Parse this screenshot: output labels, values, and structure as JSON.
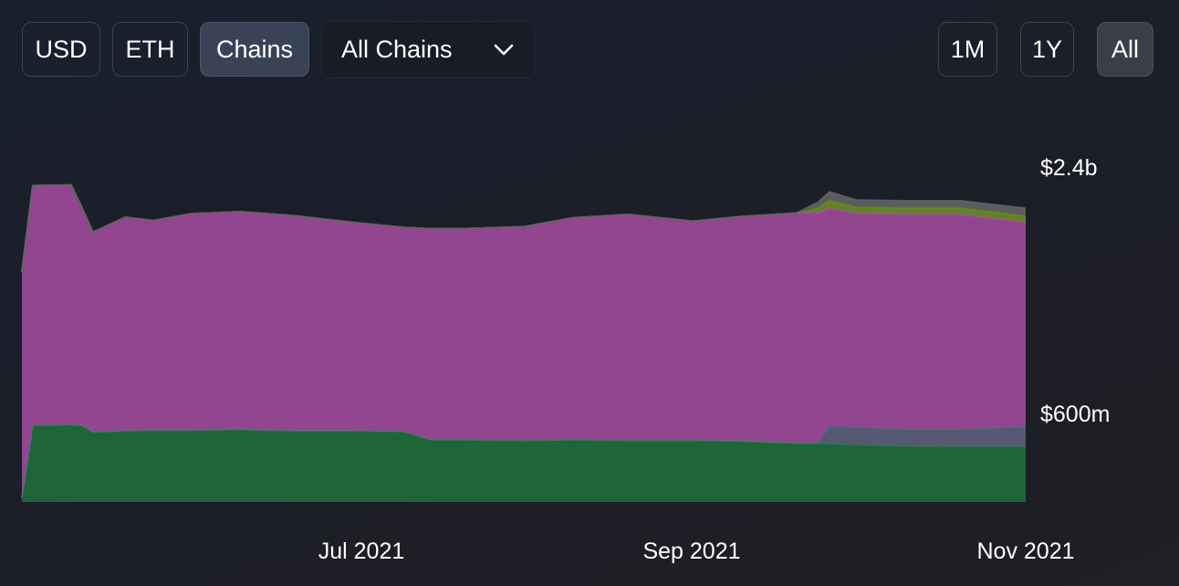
{
  "controls": {
    "currency_buttons": [
      "USD",
      "ETH",
      "Chains"
    ],
    "active_currency": "Chains",
    "chain_select_value": "All Chains",
    "range_buttons": [
      "1M",
      "1Y",
      "All"
    ],
    "active_range": "All"
  },
  "chart_data": {
    "type": "area",
    "stacked": true,
    "x_start": "2021-05-01",
    "x_end": "2021-11-01",
    "x_tick_labels": [
      "Jul 2021",
      "Sep 2021",
      "Nov 2021"
    ],
    "x_ticks": [
      "2021-07-01",
      "2021-09-01",
      "2021-11-01"
    ],
    "y_tick_labels": [
      "$2.4b",
      "$600m"
    ],
    "y_ticks": [
      2400000000,
      600000000
    ],
    "y_unit": "USD",
    "dates": [
      "2021-05-01",
      "2021-05-03",
      "2021-05-10",
      "2021-05-12",
      "2021-05-14",
      "2021-05-20",
      "2021-05-25",
      "2021-06-01",
      "2021-06-10",
      "2021-06-20",
      "2021-07-01",
      "2021-07-10",
      "2021-07-15",
      "2021-07-20",
      "2021-08-01",
      "2021-08-10",
      "2021-08-20",
      "2021-09-01",
      "2021-09-10",
      "2021-09-20",
      "2021-09-24",
      "2021-09-26",
      "2021-10-01",
      "2021-10-10",
      "2021-10-20",
      "2021-11-01"
    ],
    "series": [
      {
        "color": "#1e6b3a",
        "values": [
          30000000,
          560000000,
          565000000,
          560000000,
          510000000,
          520000000,
          525000000,
          525000000,
          530000000,
          520000000,
          520000000,
          515000000,
          455000000,
          455000000,
          450000000,
          455000000,
          450000000,
          450000000,
          445000000,
          430000000,
          430000000,
          420000000,
          415000000,
          405000000,
          400000000,
          400000000
        ]
      },
      {
        "color": "#5b5e78",
        "values": [
          0,
          0,
          0,
          0,
          0,
          0,
          0,
          0,
          0,
          0,
          0,
          0,
          0,
          0,
          0,
          0,
          0,
          0,
          0,
          0,
          0,
          135000000,
          130000000,
          125000000,
          130000000,
          150000000
        ]
      },
      {
        "color": "#9b4a98",
        "values": [
          1650000000,
          1750000000,
          1750000000,
          1590000000,
          1460000000,
          1560000000,
          1530000000,
          1580000000,
          1590000000,
          1570000000,
          1520000000,
          1490000000,
          1540000000,
          1540000000,
          1560000000,
          1620000000,
          1650000000,
          1600000000,
          1640000000,
          1680000000,
          1680000000,
          1590000000,
          1560000000,
          1570000000,
          1570000000,
          1490000000
        ]
      },
      {
        "color": "#6a8a2a",
        "values": [
          0,
          0,
          0,
          0,
          0,
          0,
          0,
          0,
          0,
          0,
          0,
          0,
          0,
          0,
          0,
          0,
          0,
          0,
          0,
          0,
          40000000,
          60000000,
          50000000,
          50000000,
          50000000,
          50000000
        ]
      },
      {
        "color": "#5f6266",
        "values": [
          0,
          0,
          0,
          0,
          0,
          0,
          0,
          0,
          0,
          0,
          0,
          0,
          0,
          0,
          0,
          0,
          0,
          0,
          0,
          0,
          40000000,
          60000000,
          50000000,
          50000000,
          50000000,
          55000000
        ]
      }
    ]
  }
}
